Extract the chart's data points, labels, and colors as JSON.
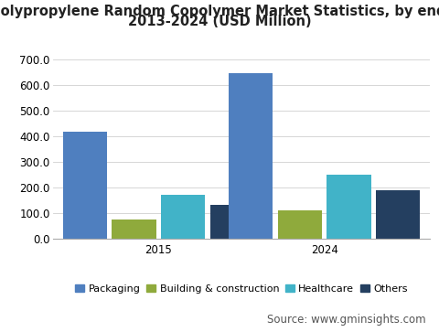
{
  "title_line1": "U.S. Polypropylene Random Copolymer Market Statistics, by end-use,",
  "title_line2": "2013-2024 (USD Million)",
  "years": [
    "2015",
    "2024"
  ],
  "categories": [
    "Packaging",
    "Building & construction",
    "Healthcare",
    "Others"
  ],
  "values": {
    "2015": [
      420,
      78,
      172,
      135
    ],
    "2024": [
      648,
      112,
      252,
      192
    ]
  },
  "colors": [
    "#4f7fbf",
    "#8faa3c",
    "#41b3c8",
    "#243f60"
  ],
  "ylim": [
    0,
    700
  ],
  "yticks": [
    0.0,
    100.0,
    200.0,
    300.0,
    400.0,
    500.0,
    600.0,
    700.0
  ],
  "bar_width": 0.13,
  "background_color": "#ffffff",
  "footer_bg": "#e0e0e0",
  "footer_text": "Source: www.gminsights.com",
  "title_fontsize": 10.5,
  "legend_fontsize": 8,
  "tick_fontsize": 8.5,
  "footer_fontsize": 8.5
}
